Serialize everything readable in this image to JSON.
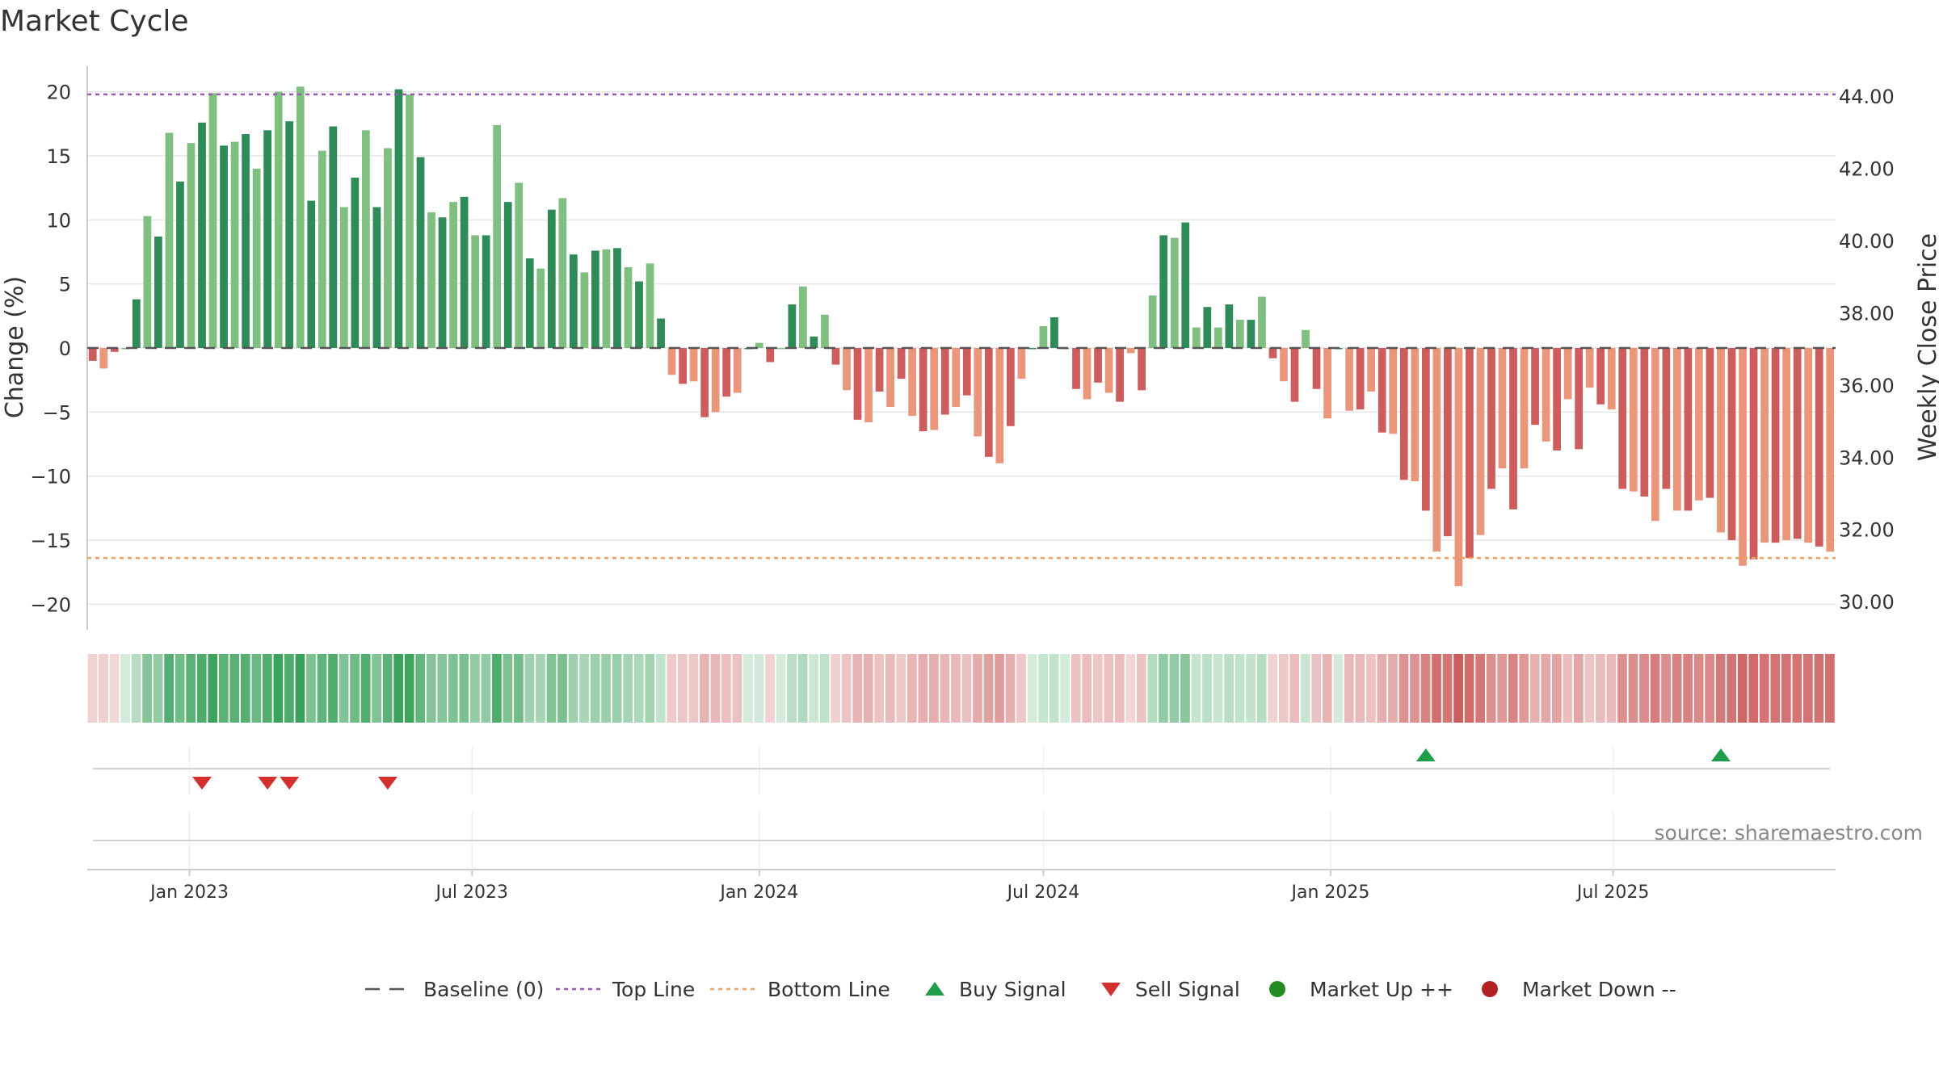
{
  "chart_data": {
    "type": "bar",
    "title": "Market Cycle",
    "ylabel": "Change (%)",
    "y2label": "Weekly Close Price",
    "ylim": [
      -22,
      22
    ],
    "y2lim": [
      29.22,
      44.83
    ],
    "yticks": [
      20,
      15,
      10,
      5,
      0,
      -5,
      -10,
      -15,
      -20
    ],
    "yticklabels": [
      "20",
      "15",
      "10",
      "5",
      "0",
      "−5",
      "−10",
      "−15",
      "−20"
    ],
    "y2ticks": [
      44.0,
      42.0,
      40.0,
      38.0,
      36.0,
      34.0,
      32.0,
      30.0
    ],
    "y2ticklabels": [
      "44.00",
      "42.00",
      "40.00",
      "38.00",
      "36.00",
      "34.00",
      "32.00",
      "30.00"
    ],
    "top_line": 19.8,
    "bottom_line": -16.4,
    "start_week": "2022-10-31",
    "weeks": 160,
    "x_ticks": [
      {
        "label": "Jan 2023",
        "date": "2023-01-01"
      },
      {
        "label": "Jul 2023",
        "date": "2023-07-01"
      },
      {
        "label": "Jan 2024",
        "date": "2024-01-01"
      },
      {
        "label": "Jul 2024",
        "date": "2024-07-01"
      },
      {
        "label": "Jan 2025",
        "date": "2025-01-01"
      },
      {
        "label": "Jul 2025",
        "date": "2025-07-01"
      }
    ],
    "values": [
      -1,
      -1.6,
      -0.3,
      0,
      3.8,
      10.3,
      8.7,
      16.8,
      13,
      16,
      17.6,
      19.9,
      15.8,
      16.1,
      16.7,
      14,
      17,
      20,
      17.7,
      20.4,
      11.5,
      15.4,
      17.3,
      11,
      13.3,
      17,
      11,
      15.6,
      20.2,
      19.8,
      14.9,
      10.6,
      10.2,
      11.4,
      11.8,
      8.8,
      8.8,
      17.4,
      11.4,
      12.9,
      7,
      6.2,
      10.8,
      11.7,
      7.3,
      5.9,
      7.6,
      7.7,
      7.8,
      6.3,
      5.2,
      6.6,
      2.3,
      -2.1,
      -2.8,
      -2.6,
      -5.4,
      -5,
      -3.8,
      -3.5,
      0,
      0.4,
      -1.1,
      0,
      3.4,
      4.8,
      0.9,
      2.6,
      -1.3,
      -3.3,
      -5.6,
      -5.8,
      -3.4,
      -4.6,
      -2.4,
      -5.3,
      -6.5,
      -6.4,
      -5.2,
      -4.6,
      -3.7,
      -6.9,
      -8.5,
      -9,
      -6.1,
      -2.4,
      0,
      1.7,
      2.4,
      0,
      -3.2,
      -4,
      -2.7,
      -3.5,
      -4.2,
      -0.4,
      -3.3,
      4.1,
      8.8,
      8.6,
      9.8,
      1.6,
      3.2,
      1.6,
      3.4,
      2.2,
      2.2,
      4,
      -0.8,
      -2.6,
      -4.2,
      1.4,
      -3.2,
      -5.5,
      0,
      -4.9,
      -4.8,
      -3.4,
      -6.6,
      -6.7,
      -10.3,
      -10.4,
      -12.7,
      -15.9,
      -14.7,
      -18.6,
      -16.4,
      -14.6,
      -11,
      -9.4,
      -12.6,
      -9.4,
      -6,
      -7.3,
      -8,
      -4,
      -7.9,
      -3.1,
      -4.4,
      -4.8,
      -11,
      -11.2,
      -11.6,
      -13.5,
      -11,
      -12.7,
      -12.7,
      -11.9,
      -11.7,
      -14.4,
      -15,
      -17,
      -16.5,
      -15.2,
      -15.2,
      -15,
      -14.9,
      -15.2,
      -15.5,
      -15.9
    ],
    "buy_signals": [
      122,
      149
    ],
    "sell_signals": [
      10,
      16,
      18,
      27
    ],
    "colors": {
      "up_strong": "#2e8b57",
      "up_weak": "#7fbf7f",
      "down_strong": "#cd5c5c",
      "down_weak": "#e9967a",
      "top_line": "#9b59b6",
      "bottom_line": "#f0a060",
      "buy": "#1e9e4a",
      "sell": "#d32f2f",
      "market_up": "#228b22",
      "market_down": "#b22222",
      "baseline": "#555555"
    }
  },
  "source": "source: sharemaestro.com",
  "legend": [
    {
      "key": "baseline",
      "label": "Baseline (0)"
    },
    {
      "key": "top",
      "label": "Top Line"
    },
    {
      "key": "bottom",
      "label": "Bottom Line"
    },
    {
      "key": "buy",
      "label": "Buy Signal"
    },
    {
      "key": "sell",
      "label": "Sell Signal"
    },
    {
      "key": "mup",
      "label": "Market Up ++"
    },
    {
      "key": "mdown",
      "label": "Market Down --"
    }
  ]
}
